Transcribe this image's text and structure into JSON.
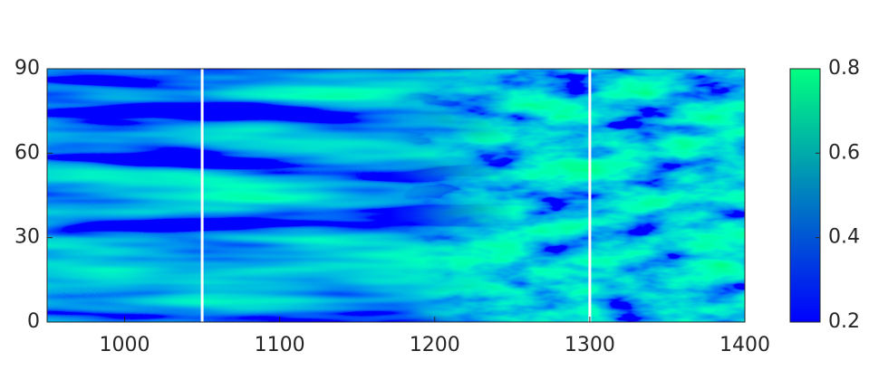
{
  "chart_data": {
    "type": "heatmap",
    "xlim": [
      950,
      1400
    ],
    "xticks": [
      1000,
      1100,
      1200,
      1300,
      1400
    ],
    "ylim": [
      0,
      90
    ],
    "yticks": [
      0,
      30,
      60,
      90
    ],
    "vlines": [
      1050,
      1300
    ],
    "vline_color": "#ffffff",
    "colormap": [
      "#0000ff",
      "#00ff80"
    ],
    "clim": [
      0.2,
      0.8
    ],
    "cticks": [
      0.2,
      0.4,
      0.6,
      0.8
    ]
  }
}
